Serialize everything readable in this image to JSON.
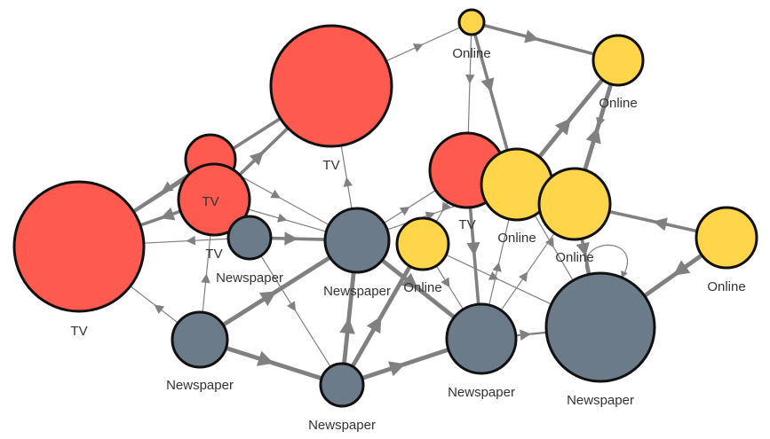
{
  "colors": {
    "tv": "#ff5a4f",
    "online": "#ffd54a",
    "newspaper": "#6b7b8a",
    "edge": "#808080",
    "stroke": "#111111"
  },
  "nodes": [
    {
      "id": "tv_big_left",
      "type": "tv",
      "label": "TV"
    },
    {
      "id": "tv_top",
      "type": "tv",
      "label": "TV"
    },
    {
      "id": "tv_small",
      "type": "tv",
      "label": "TV"
    },
    {
      "id": "tv_mid",
      "type": "tv",
      "label": "TV"
    },
    {
      "id": "tv_center",
      "type": "tv",
      "label": "TV"
    },
    {
      "id": "online_top_small",
      "type": "online",
      "label": "Online"
    },
    {
      "id": "online_top_right",
      "type": "online",
      "label": "Online"
    },
    {
      "id": "online_center_a",
      "type": "online",
      "label": "Online"
    },
    {
      "id": "online_center_b",
      "type": "online",
      "label": "Online"
    },
    {
      "id": "online_mid",
      "type": "online",
      "label": "Online"
    },
    {
      "id": "online_right",
      "type": "online",
      "label": "Online"
    },
    {
      "id": "news_small",
      "type": "newspaper",
      "label": "Newspaper"
    },
    {
      "id": "news_center",
      "type": "newspaper",
      "label": "Newspaper"
    },
    {
      "id": "news_bottom_left",
      "type": "newspaper",
      "label": "Newspaper"
    },
    {
      "id": "news_bottom",
      "type": "newspaper",
      "label": "Newspaper"
    },
    {
      "id": "news_bottom_mid",
      "type": "newspaper",
      "label": "Newspaper"
    },
    {
      "id": "news_big",
      "type": "newspaper",
      "label": "Newspaper"
    }
  ],
  "edges": [
    {
      "from": "tv_mid",
      "to": "tv_top",
      "weight": 3
    },
    {
      "from": "tv_big_left",
      "to": "tv_top",
      "weight": 3
    },
    {
      "from": "tv_top",
      "to": "online_top_small",
      "weight": 1
    },
    {
      "from": "tv_mid",
      "to": "tv_big_left",
      "weight": 3
    },
    {
      "from": "tv_small",
      "to": "tv_big_left",
      "weight": 2
    },
    {
      "from": "news_small",
      "to": "tv_big_left",
      "weight": 1
    },
    {
      "from": "news_bottom_left",
      "to": "tv_big_left",
      "weight": 1
    },
    {
      "from": "news_center",
      "to": "tv_top",
      "weight": 1
    },
    {
      "from": "online_top_small",
      "to": "online_top_right",
      "weight": 3
    },
    {
      "from": "online_top_small",
      "to": "online_center_a",
      "weight": 3
    },
    {
      "from": "online_top_small",
      "to": "tv_center",
      "weight": 1
    },
    {
      "from": "online_center_a",
      "to": "online_top_right",
      "weight": 4
    },
    {
      "from": "online_center_b",
      "to": "online_top_right",
      "weight": 4
    },
    {
      "from": "online_top_right",
      "to": "online_center_b",
      "weight": 1
    },
    {
      "from": "online_right",
      "to": "online_center_b",
      "weight": 3
    },
    {
      "from": "online_right",
      "to": "news_big",
      "weight": 4
    },
    {
      "from": "news_big",
      "to": "news_big",
      "weight": 1
    },
    {
      "from": "online_center_b",
      "to": "news_big",
      "weight": 3
    },
    {
      "from": "online_center_a",
      "to": "news_big",
      "weight": 1
    },
    {
      "from": "news_bottom_mid",
      "to": "news_big",
      "weight": 2
    },
    {
      "from": "news_bottom",
      "to": "news_bottom_mid",
      "weight": 4
    },
    {
      "from": "news_bottom_left",
      "to": "news_bottom",
      "weight": 4
    },
    {
      "from": "news_bottom_left",
      "to": "news_center",
      "weight": 4
    },
    {
      "from": "news_bottom_left",
      "to": "tv_mid",
      "weight": 1
    },
    {
      "from": "news_bottom",
      "to": "news_center",
      "weight": 4
    },
    {
      "from": "news_bottom",
      "to": "online_mid",
      "weight": 4
    },
    {
      "from": "news_small",
      "to": "news_bottom",
      "weight": 1
    },
    {
      "from": "news_small",
      "to": "news_center",
      "weight": 3
    },
    {
      "from": "tv_mid",
      "to": "news_center",
      "weight": 1
    },
    {
      "from": "tv_small",
      "to": "news_center",
      "weight": 1
    },
    {
      "from": "news_center",
      "to": "news_bottom_mid",
      "weight": 4
    },
    {
      "from": "news_center",
      "to": "tv_center",
      "weight": 1
    },
    {
      "from": "online_mid",
      "to": "news_bottom_mid",
      "weight": 1
    },
    {
      "from": "online_mid",
      "to": "news_big",
      "weight": 1
    },
    {
      "from": "tv_center",
      "to": "news_bottom_mid",
      "weight": 3
    },
    {
      "from": "tv_center",
      "to": "online_mid",
      "weight": 1
    },
    {
      "from": "news_bottom_mid",
      "to": "online_center_a",
      "weight": 1
    },
    {
      "from": "news_bottom_mid",
      "to": "online_center_b",
      "weight": 1
    },
    {
      "from": "news_center",
      "to": "online_center_a",
      "weight": 1
    },
    {
      "from": "news_bottom",
      "to": "online_mid",
      "weight": 1
    }
  ]
}
